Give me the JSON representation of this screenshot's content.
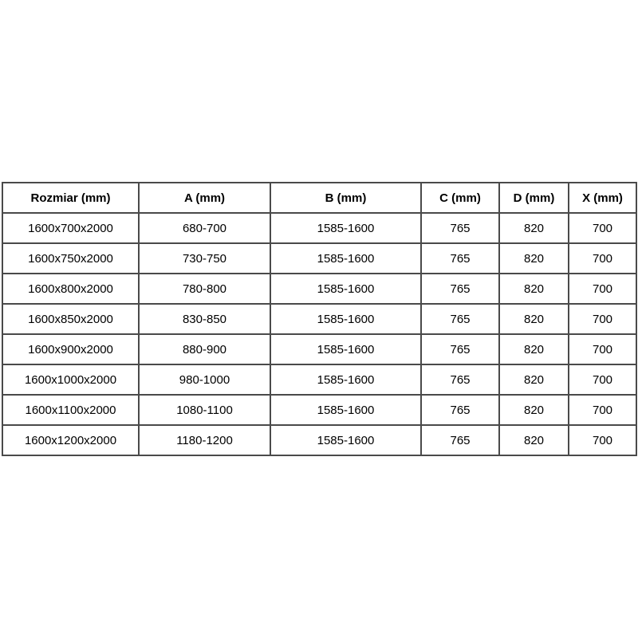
{
  "colors": {
    "background": "#ffffff",
    "table_border": "#4a4a4a",
    "text": "#000000"
  },
  "table": {
    "columns": [
      "Rozmiar (mm)",
      "A (mm)",
      "B (mm)",
      "C (mm)",
      "D (mm)",
      "X (mm)"
    ],
    "rows": [
      [
        "1600x700x2000",
        "680-700",
        "1585-1600",
        "765",
        "820",
        "700"
      ],
      [
        "1600x750x2000",
        "730-750",
        "1585-1600",
        "765",
        "820",
        "700"
      ],
      [
        "1600x800x2000",
        "780-800",
        "1585-1600",
        "765",
        "820",
        "700"
      ],
      [
        "1600x850x2000",
        "830-850",
        "1585-1600",
        "765",
        "820",
        "700"
      ],
      [
        "1600x900x2000",
        "880-900",
        "1585-1600",
        "765",
        "820",
        "700"
      ],
      [
        "1600x1000x2000",
        "980-1000",
        "1585-1600",
        "765",
        "820",
        "700"
      ],
      [
        "1600x1100x2000",
        "1080-1100",
        "1585-1600",
        "765",
        "820",
        "700"
      ],
      [
        "1600x1200x2000",
        "1180-1200",
        "1585-1600",
        "765",
        "820",
        "700"
      ]
    ]
  }
}
